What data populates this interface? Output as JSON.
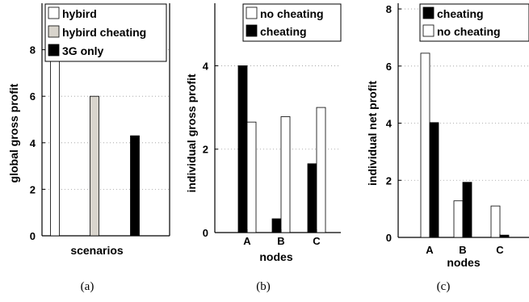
{
  "chart_data": [
    {
      "type": "bar",
      "caption": "(a)",
      "xlabel": "scenarios",
      "ylabel": "global gross profit",
      "ylim": [
        0,
        10
      ],
      "yticks": [
        0,
        2,
        4,
        6,
        8
      ],
      "grid": "horizontal dotted",
      "legend": "top",
      "categories": [
        ""
      ],
      "series": [
        {
          "name": "hybird",
          "color": "#ffffff",
          "values": [
            8.5
          ]
        },
        {
          "name": "hybird cheating",
          "color": "#d8d4cc",
          "values": [
            6.0
          ]
        },
        {
          "name": "3G only",
          "color": "#000000",
          "values": [
            4.3
          ]
        }
      ]
    },
    {
      "type": "bar",
      "caption": "(b)",
      "xlabel": "nodes",
      "ylabel": "individual gross profit",
      "ylim": [
        0,
        5.5
      ],
      "yticks": [
        0,
        2,
        4
      ],
      "grid": "horizontal dotted",
      "legend": "top-right",
      "categories": [
        "A",
        "B",
        "C"
      ],
      "series": [
        {
          "name": "cheating",
          "color": "#000000",
          "values": [
            4.0,
            0.33,
            1.65
          ]
        },
        {
          "name": "no cheating",
          "color": "#ffffff",
          "values": [
            2.65,
            2.78,
            3.0
          ]
        }
      ],
      "legend_order": [
        "no cheating",
        "cheating"
      ]
    },
    {
      "type": "bar",
      "caption": "(c)",
      "xlabel": "nodes",
      "ylabel": "individual net profit",
      "ylim": [
        0,
        8.2
      ],
      "yticks": [
        0,
        2,
        4,
        6,
        8
      ],
      "grid": "horizontal dotted",
      "legend": "top-right",
      "categories": [
        "A",
        "B",
        "C"
      ],
      "series": [
        {
          "name": "no cheating",
          "color": "#ffffff",
          "values": [
            6.45,
            1.28,
            1.1
          ]
        },
        {
          "name": "cheating",
          "color": "#000000",
          "values": [
            4.02,
            1.93,
            0.08
          ]
        }
      ],
      "legend_order": [
        "cheating",
        "no cheating"
      ]
    }
  ]
}
